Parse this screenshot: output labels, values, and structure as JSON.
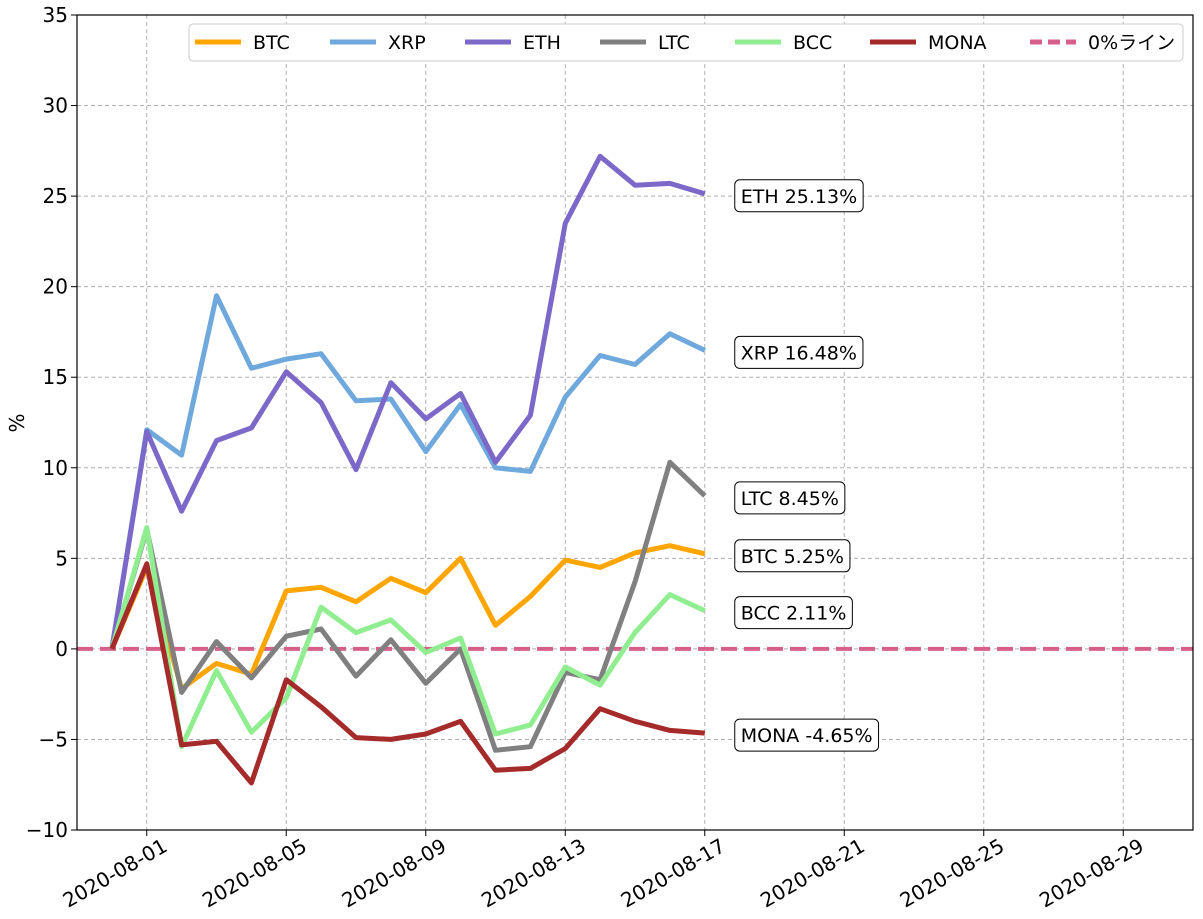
{
  "chart_data": {
    "type": "line",
    "title": "",
    "xlabel": "",
    "ylabel": "%",
    "ylim": [
      -10,
      35
    ],
    "xlim": [
      "2020-07-30",
      "2020-08-31"
    ],
    "grid": true,
    "legend_position": "top",
    "yticks": [
      -10,
      -5,
      0,
      5,
      10,
      15,
      20,
      25,
      30,
      35
    ],
    "ytick_labels": [
      "−10",
      "−5",
      "0",
      "5",
      "10",
      "15",
      "20",
      "25",
      "30",
      "35"
    ],
    "xtick_labels": [
      "2020-08-01",
      "2020-08-05",
      "2020-08-09",
      "2020-08-13",
      "2020-08-17",
      "2020-08-21",
      "2020-08-25",
      "2020-08-29"
    ],
    "x": [
      "2020-07-31",
      "2020-08-01",
      "2020-08-02",
      "2020-08-03",
      "2020-08-04",
      "2020-08-05",
      "2020-08-06",
      "2020-08-07",
      "2020-08-08",
      "2020-08-09",
      "2020-08-10",
      "2020-08-11",
      "2020-08-12",
      "2020-08-13",
      "2020-08-14",
      "2020-08-15",
      "2020-08-16",
      "2020-08-17"
    ],
    "series": [
      {
        "name": "BTC",
        "color": "#ffa500",
        "values": [
          0.0,
          4.5,
          -2.2,
          -0.8,
          -1.4,
          3.2,
          3.4,
          2.6,
          3.9,
          3.1,
          5.0,
          1.3,
          2.9,
          4.9,
          4.5,
          5.3,
          5.7,
          5.25
        ],
        "label": "BTC   5.25%"
      },
      {
        "name": "XRP",
        "color": "#6fa8dc",
        "values": [
          0.0,
          12.1,
          10.7,
          19.5,
          15.5,
          16.0,
          16.3,
          13.7,
          13.8,
          10.9,
          13.5,
          10.0,
          9.8,
          13.9,
          16.2,
          15.7,
          17.4,
          16.48
        ],
        "label": "XRP   16.48%"
      },
      {
        "name": "ETH",
        "color": "#7b68c8",
        "values": [
          0.0,
          12.0,
          7.6,
          11.5,
          12.2,
          15.3,
          13.6,
          9.9,
          14.7,
          12.7,
          14.1,
          10.3,
          12.9,
          23.5,
          27.2,
          25.6,
          25.7,
          25.13
        ],
        "label": "ETH   25.13%"
      },
      {
        "name": "LTC",
        "color": "#808080",
        "values": [
          0.0,
          6.6,
          -2.4,
          0.4,
          -1.6,
          0.7,
          1.1,
          -1.5,
          0.5,
          -1.9,
          0.0,
          -5.6,
          -5.4,
          -1.3,
          -1.7,
          3.7,
          10.3,
          8.45
        ],
        "label": "LTC   8.45%"
      },
      {
        "name": "BCC",
        "color": "#90ee90",
        "values": [
          0.0,
          6.7,
          -5.4,
          -1.2,
          -4.6,
          -2.7,
          2.3,
          0.9,
          1.6,
          -0.2,
          0.6,
          -4.7,
          -4.2,
          -1.0,
          -2.0,
          0.9,
          3.0,
          2.11
        ],
        "label": "BCC   2.11%"
      },
      {
        "name": "MONA",
        "color": "#a52a2a",
        "values": [
          0.0,
          4.7,
          -5.3,
          -5.1,
          -7.4,
          -1.7,
          -3.2,
          -4.9,
          -5.0,
          -4.7,
          -4.0,
          -6.7,
          -6.6,
          -5.5,
          -3.3,
          -4.0,
          -4.5,
          -4.65
        ],
        "label": "MONA   -4.65%"
      }
    ],
    "reference_line": {
      "name": "0%ライン",
      "value": 0,
      "color": "#d6608a",
      "style": "dashed"
    }
  }
}
